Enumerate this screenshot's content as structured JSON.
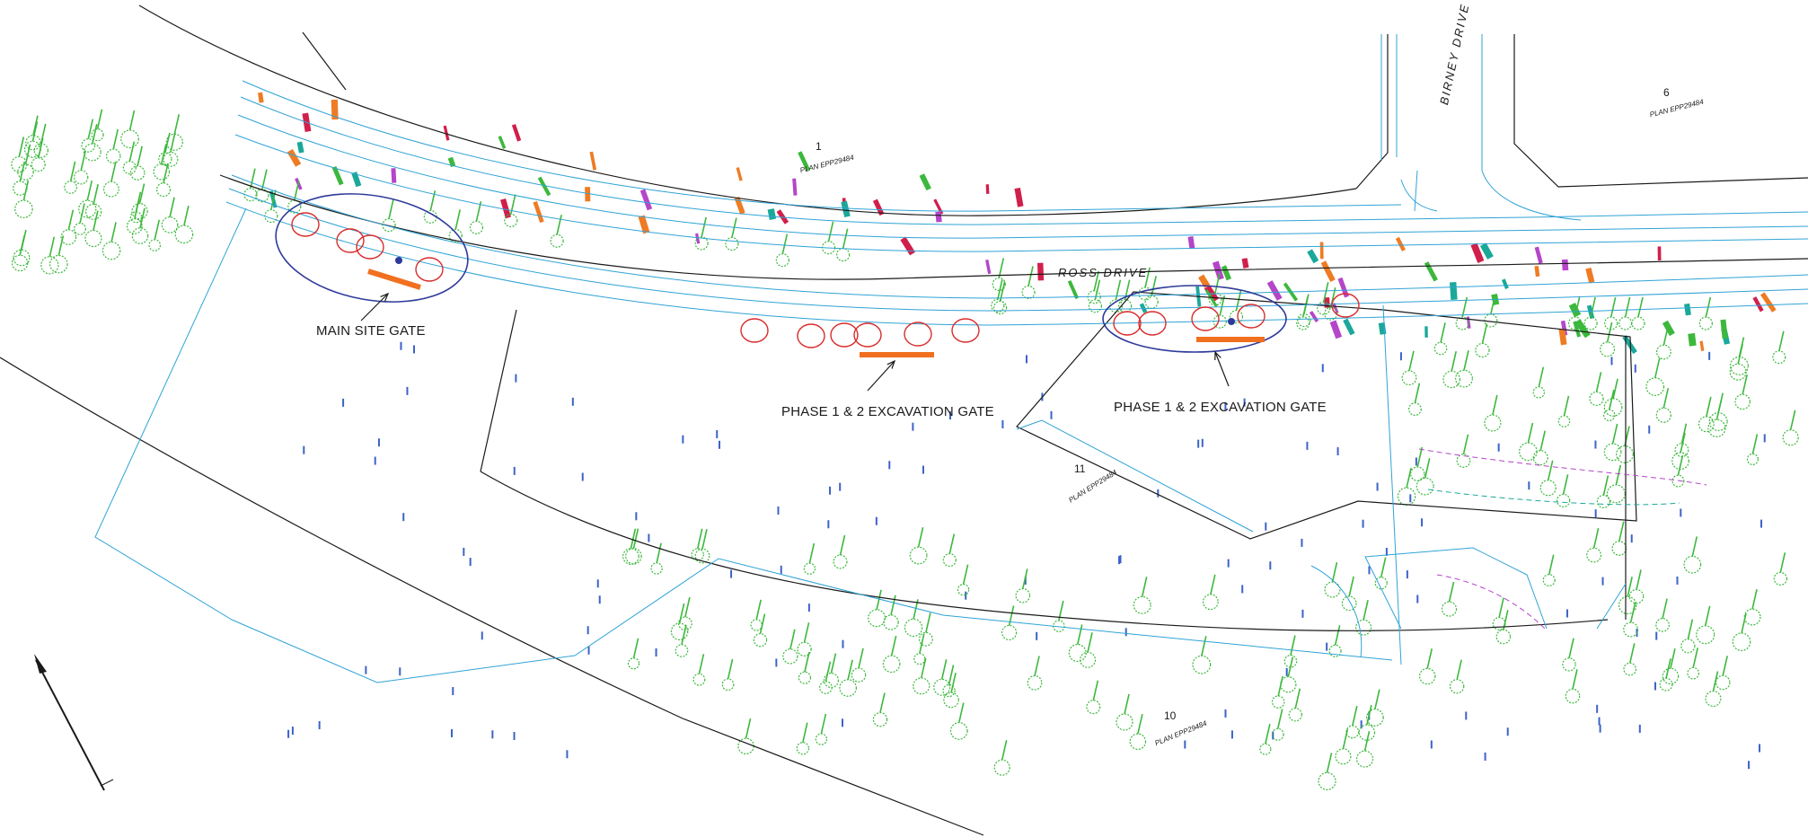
{
  "gates": {
    "main": "MAIN SITE GATE",
    "phase_a": "PHASE 1 & 2 EXCAVATION GATE",
    "phase_b": "PHASE 1 & 2 EXCAVATION GATE"
  },
  "roads": {
    "ross": "ROSS  DRIVE",
    "birney": "BIRNEY  DRIVE"
  },
  "lots": [
    {
      "number": "1",
      "plan": "PLAN EPP29484"
    },
    {
      "number": "6",
      "plan": "PLAN EPP29484"
    },
    {
      "number": "11",
      "plan": "PLAN EPP29484"
    },
    {
      "number": "10",
      "plan": "PLAN EPP29484"
    }
  ],
  "colors": {
    "boundary": "#1a1a1a",
    "road_line": "#2fa3d6",
    "tree": "#3cb83c",
    "highlight_circle": "#d92b2b",
    "gate_zone": "#2e3a9a",
    "gate_bar": "#f07020",
    "spot_level": "#3c63c8",
    "tag_red": "#d11f4b",
    "tag_purple": "#b545c9",
    "tag_orange": "#ef7b23"
  },
  "icons": [
    "tree-icon",
    "north-arrow-icon",
    "gate-arrow-icon"
  ]
}
